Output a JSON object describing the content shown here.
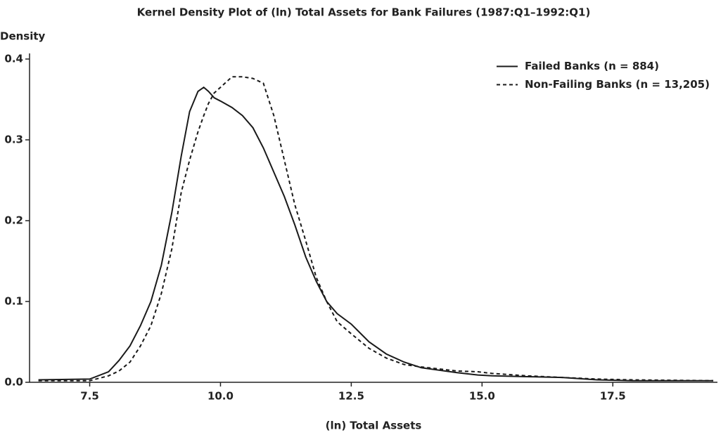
{
  "chart_data": {
    "type": "line",
    "title": "Kernel Density Plot of (ln) Total Assets for Bank Failures (1987:Q1–1992:Q1)",
    "y_label": "Density",
    "x_label": "(ln) Total Assets",
    "x": [
      6.52,
      7.5,
      7.86,
      8.06,
      8.27,
      8.47,
      8.67,
      8.87,
      9.07,
      9.25,
      9.41,
      9.57,
      9.68,
      9.77,
      9.88,
      10,
      10.22,
      10.42,
      10.62,
      10.82,
      11.02,
      11.22,
      11.42,
      11.63,
      11.83,
      12.03,
      12.23,
      12.5,
      12.84,
      13.17,
      13.51,
      13.84,
      14.52,
      14.92,
      15.19,
      15.86,
      16.53,
      17.2,
      17.88,
      19.42
    ],
    "series": [
      {
        "name": "Failed Banks (n = 884)",
        "color": "#1a1a1a",
        "line_style": "solid",
        "values": [
          0.003,
          0.004,
          0.013,
          0.027,
          0.045,
          0.07,
          0.1,
          0.145,
          0.21,
          0.28,
          0.335,
          0.36,
          0.365,
          0.36,
          0.352,
          0.348,
          0.34,
          0.33,
          0.315,
          0.29,
          0.26,
          0.23,
          0.195,
          0.155,
          0.125,
          0.1,
          0.085,
          0.072,
          0.05,
          0.035,
          0.025,
          0.018,
          0.012,
          0.009,
          0.008,
          0.007,
          0.006,
          0.003,
          0.002,
          0.002
        ]
      },
      {
        "name": "Non-Failing Banks (n = 13,205)",
        "color": "#1a1a1a",
        "line_style": "dashed",
        "values": [
          0.002,
          0.002,
          0.008,
          0.014,
          0.025,
          0.045,
          0.07,
          0.11,
          0.165,
          0.235,
          0.275,
          0.31,
          0.33,
          0.345,
          0.358,
          0.365,
          0.378,
          0.378,
          0.376,
          0.37,
          0.33,
          0.275,
          0.22,
          0.175,
          0.13,
          0.1,
          0.075,
          0.06,
          0.042,
          0.03,
          0.022,
          0.019,
          0.014,
          0.013,
          0.011,
          0.008,
          0.006,
          0.004,
          0.003,
          0.002
        ]
      }
    ],
    "xlim": [
      6.35,
      19.5
    ],
    "xticks": [
      7.5,
      {
        "value": 10,
        "label": "10.0"
      },
      12.5,
      {
        "value": 15,
        "label": "15.0"
      },
      17.5
    ],
    "ylim": [
      0,
      0.41
    ],
    "yticks": [
      {
        "value": 0,
        "label": "0.0"
      },
      0.1,
      0.2,
      0.3,
      0.4
    ],
    "grid": false,
    "legend": "upper right"
  }
}
